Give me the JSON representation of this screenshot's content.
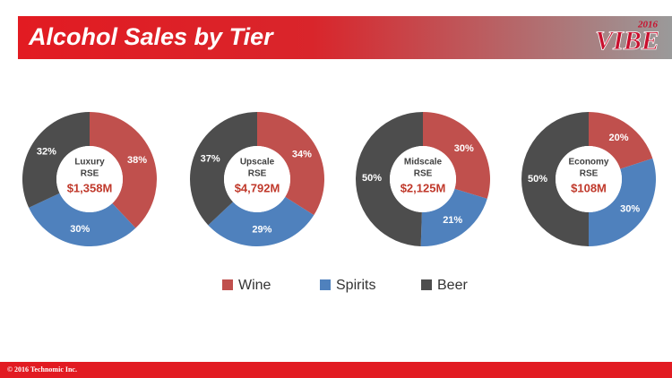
{
  "header": {
    "title": "Alcohol Sales by Tier",
    "logo_year": "2016",
    "logo": "VIBE"
  },
  "chart_data": [
    {
      "type": "pie",
      "title": "Luxury",
      "subtitle": "RSE",
      "center_label": "$1,358M",
      "categories": [
        "Wine",
        "Spirits",
        "Beer"
      ],
      "values": [
        38,
        30,
        32
      ],
      "value_labels": [
        "38%",
        "30%",
        "32%"
      ],
      "colors": [
        "#c0504d",
        "#4f81bd",
        "#4d4d4d"
      ]
    },
    {
      "type": "pie",
      "title": "Upscale",
      "subtitle": "RSE",
      "center_label": "$4,792M",
      "categories": [
        "Wine",
        "Spirits",
        "Beer"
      ],
      "values": [
        34,
        29,
        37
      ],
      "value_labels": [
        "34%",
        "29%",
        "37%"
      ],
      "colors": [
        "#c0504d",
        "#4f81bd",
        "#4d4d4d"
      ]
    },
    {
      "type": "pie",
      "title": "Midscale",
      "subtitle": "RSE",
      "center_label": "$2,125M",
      "categories": [
        "Wine",
        "Spirits",
        "Beer"
      ],
      "values": [
        30,
        21,
        50
      ],
      "value_labels": [
        "30%",
        "21%",
        "50%"
      ],
      "colors": [
        "#c0504d",
        "#4f81bd",
        "#4d4d4d"
      ]
    },
    {
      "type": "pie",
      "title": "Economy",
      "subtitle": "RSE",
      "center_label": "$108M",
      "categories": [
        "Wine",
        "Spirits",
        "Beer"
      ],
      "values": [
        20,
        30,
        50
      ],
      "value_labels": [
        "20%",
        "30%",
        "50%"
      ],
      "colors": [
        "#c0504d",
        "#4f81bd",
        "#4d4d4d"
      ]
    }
  ],
  "footer": "© 2016 Technomic Inc."
}
